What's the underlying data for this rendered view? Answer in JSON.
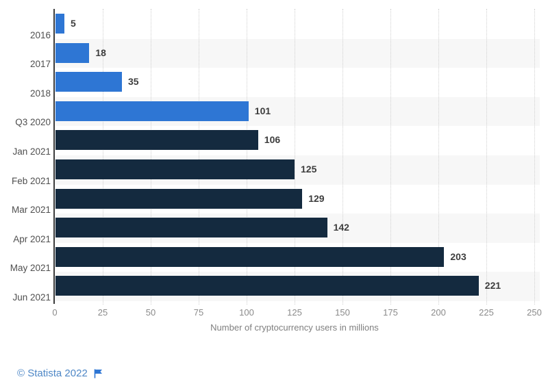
{
  "chart_data": {
    "type": "bar",
    "orientation": "horizontal",
    "title": "",
    "xlabel": "Number of cryptocurrency users in millions",
    "ylabel": "",
    "categories": [
      "2016",
      "2017",
      "2018",
      "Q3 2020",
      "Jan 2021",
      "Feb 2021",
      "Mar 2021",
      "Apr 2021",
      "May 2021",
      "Jun 2021"
    ],
    "values": [
      5,
      18,
      35,
      101,
      106,
      125,
      129,
      142,
      203,
      221
    ],
    "bar_colors": [
      "#2e76d4",
      "#2e76d4",
      "#2e76d4",
      "#2e76d4",
      "#142a3f",
      "#142a3f",
      "#142a3f",
      "#142a3f",
      "#142a3f",
      "#142a3f"
    ],
    "x_ticks": [
      0,
      25,
      50,
      75,
      100,
      125,
      150,
      175,
      200,
      225,
      250
    ],
    "xlim": [
      0,
      250
    ],
    "grid": "vertical-dotted",
    "value_labels_shown": true,
    "legend": "none"
  },
  "colors": {
    "bar_light_blue": "#2e76d4",
    "bar_dark_navy": "#142a3f",
    "band_alternate": "#f7f7f7",
    "band_base": "#ffffff",
    "gridline": "#cfcfcf",
    "axis_line": "#3a3a3a",
    "category_label": "#4f4f4f",
    "value_label": "#3d3d3d",
    "tick_label": "#8a8a8a",
    "axis_title": "#7f7f7f",
    "footer_link": "#4e87c6"
  },
  "footer": {
    "attribution": "© Statista 2022",
    "flag_icon": "flag-icon"
  }
}
